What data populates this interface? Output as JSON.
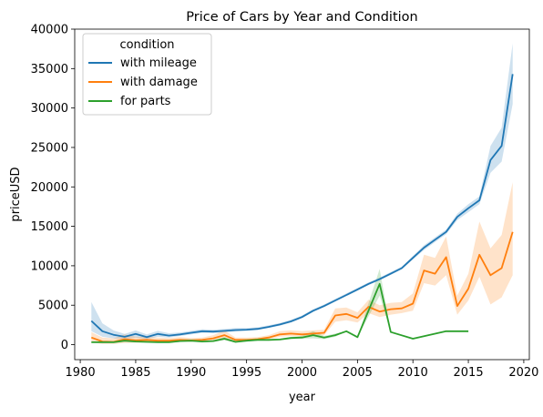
{
  "chart_data": {
    "type": "line",
    "title": "Price of Cars by Year and Condition",
    "xlabel": "year",
    "ylabel": "priceUSD",
    "xlim": [
      1979.5,
      2020.5
    ],
    "ylim": [
      -1900,
      40000
    ],
    "xticks": [
      1980,
      1985,
      1990,
      1995,
      2000,
      2005,
      2010,
      2015,
      2020
    ],
    "yticks": [
      0,
      5000,
      10000,
      15000,
      20000,
      25000,
      30000,
      35000,
      40000
    ],
    "grid": false,
    "legend": {
      "title": "condition",
      "placement": "top-left"
    },
    "series": [
      {
        "name": "with mileage",
        "color": "#1f77b4",
        "band_color": "#1f77b4",
        "x": [
          1981,
          1982,
          1983,
          1984,
          1985,
          1986,
          1987,
          1988,
          1989,
          1990,
          1991,
          1992,
          1993,
          1994,
          1995,
          1996,
          1997,
          1998,
          1999,
          2000,
          2001,
          2002,
          2003,
          2004,
          2005,
          2006,
          2007,
          2008,
          2009,
          2010,
          2011,
          2012,
          2013,
          2014,
          2015,
          2016,
          2017,
          2018,
          2019
        ],
        "y": [
          3000,
          1700,
          1250,
          1000,
          1350,
          950,
          1350,
          1150,
          1300,
          1500,
          1700,
          1650,
          1750,
          1850,
          1900,
          2000,
          2250,
          2550,
          2950,
          3500,
          4300,
          4900,
          5600,
          6300,
          7000,
          7700,
          8300,
          9000,
          9700,
          11000,
          12300,
          13300,
          14300,
          16200,
          17300,
          18300,
          23400,
          25200,
          34300
        ],
        "lower": [
          1700,
          1000,
          800,
          700,
          900,
          700,
          1000,
          900,
          1100,
          1300,
          1500,
          1450,
          1550,
          1650,
          1750,
          1850,
          2100,
          2400,
          2800,
          3350,
          4150,
          4750,
          5450,
          6150,
          6850,
          7550,
          8150,
          8850,
          9550,
          10800,
          12000,
          13000,
          14000,
          15800,
          16800,
          17800,
          21800,
          23200,
          30500
        ],
        "upper": [
          5400,
          2700,
          1800,
          1350,
          1800,
          1300,
          1750,
          1450,
          1550,
          1750,
          1950,
          1900,
          2000,
          2100,
          2100,
          2200,
          2450,
          2750,
          3150,
          3700,
          4500,
          5100,
          5800,
          6500,
          7200,
          7900,
          8500,
          9200,
          9900,
          11250,
          12600,
          13600,
          14600,
          16600,
          17800,
          18800,
          25200,
          27500,
          38200
        ]
      },
      {
        "name": "with damage",
        "color": "#ff7f0e",
        "band_color": "#ff7f0e",
        "x": [
          1981,
          1982,
          1983,
          1984,
          1985,
          1986,
          1987,
          1988,
          1989,
          1990,
          1991,
          1992,
          1993,
          1994,
          1995,
          1996,
          1997,
          1998,
          1999,
          2000,
          2001,
          2002,
          2003,
          2004,
          2005,
          2006,
          2007,
          2008,
          2009,
          2010,
          2011,
          2012,
          2013,
          2014,
          2015,
          2016,
          2017,
          2018,
          2019
        ],
        "y": [
          900,
          400,
          350,
          700,
          550,
          600,
          500,
          500,
          600,
          550,
          600,
          800,
          1200,
          600,
          600,
          700,
          900,
          1300,
          1400,
          1300,
          1400,
          1500,
          3700,
          3900,
          3400,
          4800,
          4200,
          4500,
          4600,
          5200,
          9400,
          9000,
          11100,
          4900,
          7100,
          11400,
          8800,
          9700,
          14300
        ],
        "lower": [
          300,
          100,
          100,
          200,
          250,
          300,
          250,
          250,
          350,
          350,
          400,
          500,
          700,
          400,
          450,
          550,
          700,
          1000,
          1100,
          1050,
          1100,
          1200,
          2900,
          3100,
          2800,
          4000,
          3500,
          3800,
          4000,
          4300,
          7800,
          7500,
          8800,
          3800,
          5600,
          8600,
          5100,
          6000,
          8800
        ],
        "upper": [
          1600,
          900,
          800,
          1300,
          1000,
          1000,
          900,
          850,
          950,
          850,
          900,
          1200,
          1800,
          900,
          900,
          950,
          1200,
          1700,
          1800,
          1700,
          1800,
          1900,
          4600,
          4700,
          4100,
          5700,
          5000,
          5300,
          5400,
          6500,
          11400,
          11000,
          13700,
          6200,
          9000,
          15600,
          12200,
          13900,
          20600
        ]
      },
      {
        "name": "for parts",
        "color": "#2ca02c",
        "band_color": "#2ca02c",
        "x": [
          1981,
          1982,
          1983,
          1984,
          1985,
          1986,
          1987,
          1988,
          1989,
          1990,
          1991,
          1992,
          1993,
          1994,
          1995,
          1996,
          1997,
          1998,
          1999,
          2000,
          2001,
          2002,
          2003,
          2004,
          2005,
          2007,
          2008,
          2010,
          2013,
          2015
        ],
        "y": [
          300,
          300,
          300,
          500,
          400,
          350,
          300,
          300,
          450,
          500,
          400,
          450,
          750,
          350,
          500,
          600,
          600,
          650,
          850,
          900,
          1200,
          900,
          1200,
          1700,
          950,
          7700,
          1600,
          750,
          1700,
          1700
        ],
        "lower": [
          300,
          300,
          300,
          350,
          300,
          250,
          250,
          250,
          350,
          400,
          300,
          350,
          550,
          250,
          400,
          500,
          500,
          550,
          700,
          750,
          800,
          700,
          1000,
          1700,
          950,
          6200,
          1600,
          750,
          1700,
          1700
        ],
        "upper": [
          300,
          300,
          300,
          650,
          500,
          450,
          400,
          400,
          550,
          600,
          500,
          550,
          950,
          450,
          600,
          700,
          700,
          750,
          1000,
          1100,
          1700,
          1100,
          1400,
          1700,
          950,
          9600,
          1600,
          750,
          1700,
          1700
        ]
      }
    ]
  }
}
